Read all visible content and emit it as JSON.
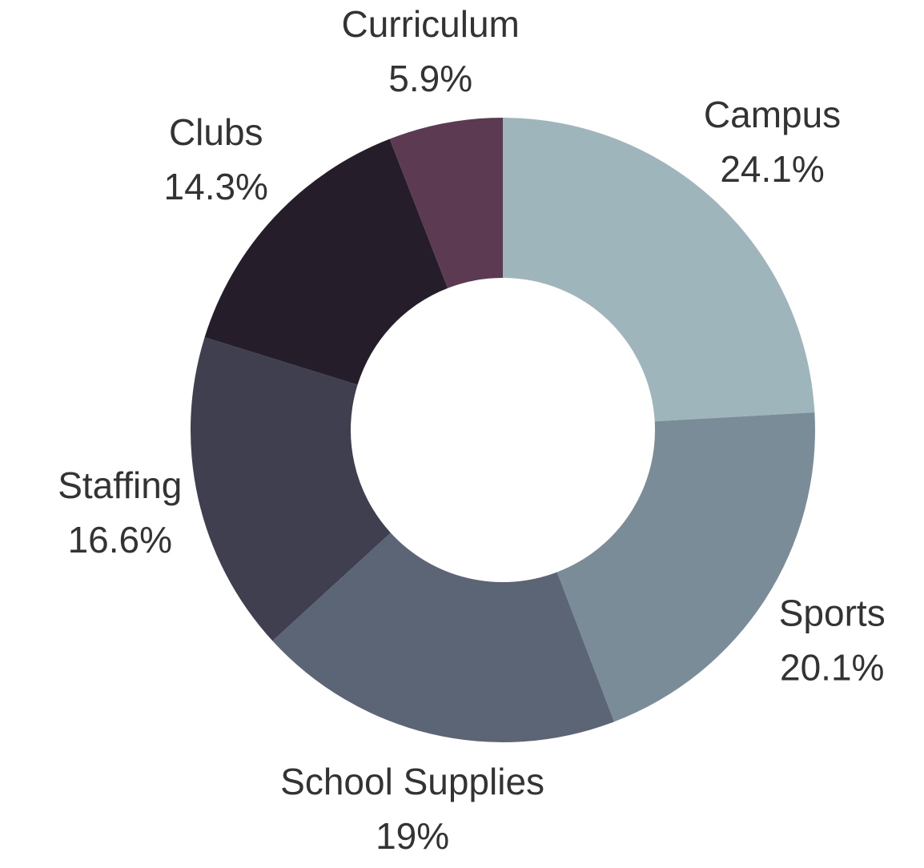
{
  "chart_data": {
    "type": "donut",
    "categories": [
      "Campus",
      "Sports",
      "School Supplies",
      "Staffing",
      "Clubs",
      "Curriculum"
    ],
    "values": [
      24.1,
      20.1,
      19,
      16.6,
      14.3,
      5.9
    ],
    "value_labels": [
      "24.1%",
      "20.1%",
      "19%",
      "16.6%",
      "14.3%",
      "5.9%"
    ],
    "colors": [
      "#9fb5bc",
      "#7b8c99",
      "#5c6576",
      "#3f3f50",
      "#261d2b",
      "#5c3a51"
    ]
  }
}
